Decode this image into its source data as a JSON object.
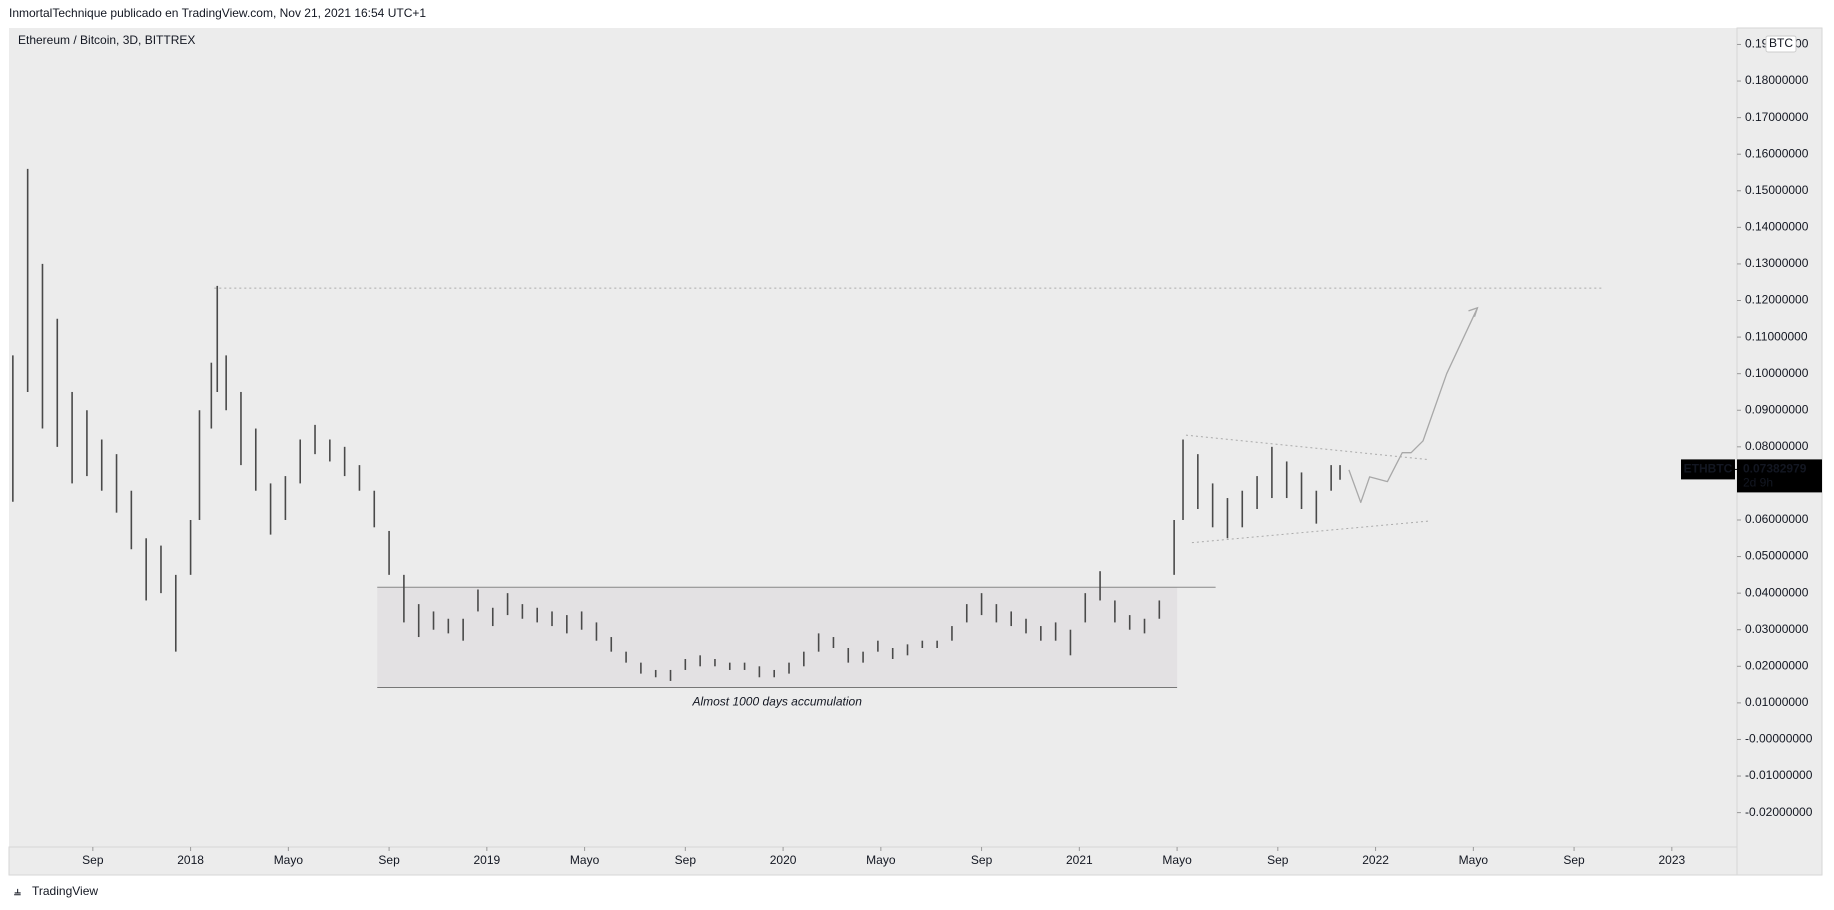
{
  "header": {
    "publisher": "InmortalTechnique publicado en TradingView.com, Nov 21, 2021 16:54 UTC+1"
  },
  "footer": {
    "brand": "TradingView"
  },
  "chart_data": {
    "type": "range-bar",
    "title": "Ethereum / Bitcoin, 3D, BITTREX",
    "symbol": "ETHBTC",
    "currency": "BTC",
    "last_price": {
      "value": 0.07382979,
      "label": "0.07382979"
    },
    "countdown": "2d 9h",
    "color": "#4a4a4a",
    "grid": false,
    "xlim": [
      2017.387,
      2023.22
    ],
    "ylim": [
      -0.0294,
      0.1945
    ],
    "xticks": [
      {
        "value": 2017.67,
        "label": "Sep"
      },
      {
        "value": 2018,
        "label": "2018"
      },
      {
        "value": 2018.33,
        "label": "Mayo"
      },
      {
        "value": 2018.67,
        "label": "Sep"
      },
      {
        "value": 2019,
        "label": "2019"
      },
      {
        "value": 2019.33,
        "label": "Mayo"
      },
      {
        "value": 2019.67,
        "label": "Sep"
      },
      {
        "value": 2020,
        "label": "2020"
      },
      {
        "value": 2020.33,
        "label": "Mayo"
      },
      {
        "value": 2020.67,
        "label": "Sep"
      },
      {
        "value": 2021,
        "label": "2021"
      },
      {
        "value": 2021.33,
        "label": "Mayo"
      },
      {
        "value": 2021.67,
        "label": "Sep"
      },
      {
        "value": 2022,
        "label": "2022"
      },
      {
        "value": 2022.33,
        "label": "Mayo"
      },
      {
        "value": 2022.67,
        "label": "Sep"
      },
      {
        "value": 2023,
        "label": "2023"
      }
    ],
    "yticks": [
      {
        "value": 0.19,
        "label": "0.19000000"
      },
      {
        "value": 0.18,
        "label": "0.18000000"
      },
      {
        "value": 0.17,
        "label": "0.17000000"
      },
      {
        "value": 0.16,
        "label": "0.16000000"
      },
      {
        "value": 0.15,
        "label": "0.15000000"
      },
      {
        "value": 0.14,
        "label": "0.14000000"
      },
      {
        "value": 0.13,
        "label": "0.13000000"
      },
      {
        "value": 0.12,
        "label": "0.12000000"
      },
      {
        "value": 0.11,
        "label": "0.11000000"
      },
      {
        "value": 0.1,
        "label": "0.10000000"
      },
      {
        "value": 0.09,
        "label": "0.09000000"
      },
      {
        "value": 0.08,
        "label": "0.08000000"
      },
      {
        "value": 0.07,
        "label": "0.07000000"
      },
      {
        "value": 0.06,
        "label": "0.06000000"
      },
      {
        "value": 0.05,
        "label": "0.05000000"
      },
      {
        "value": 0.04,
        "label": "0.04000000"
      },
      {
        "value": 0.03,
        "label": "0.03000000"
      },
      {
        "value": 0.02,
        "label": "0.02000000"
      },
      {
        "value": 0.01,
        "label": "0.01000000"
      },
      {
        "value": 0,
        "label": "-0.00000000"
      },
      {
        "value": -0.01,
        "label": "-0.01000000"
      },
      {
        "value": -0.02,
        "label": "-0.02000000"
      }
    ],
    "x": [
      2017.4,
      2017.45,
      2017.5,
      2017.55,
      2017.6,
      2017.65,
      2017.7,
      2017.75,
      2017.8,
      2017.85,
      2017.9,
      2017.95,
      2018.0,
      2018.03,
      2018.07,
      2018.09,
      2018.12,
      2018.17,
      2018.22,
      2018.27,
      2018.32,
      2018.37,
      2018.42,
      2018.47,
      2018.52,
      2018.57,
      2018.62,
      2018.67,
      2018.72,
      2018.77,
      2018.82,
      2018.87,
      2018.92,
      2018.97,
      2019.02,
      2019.07,
      2019.12,
      2019.17,
      2019.22,
      2019.27,
      2019.32,
      2019.37,
      2019.42,
      2019.47,
      2019.52,
      2019.57,
      2019.62,
      2019.67,
      2019.72,
      2019.77,
      2019.82,
      2019.87,
      2019.92,
      2019.97,
      2020.02,
      2020.07,
      2020.12,
      2020.17,
      2020.22,
      2020.27,
      2020.32,
      2020.37,
      2020.42,
      2020.47,
      2020.52,
      2020.57,
      2020.62,
      2020.67,
      2020.72,
      2020.77,
      2020.82,
      2020.87,
      2020.92,
      2020.97,
      2021.02,
      2021.07,
      2021.12,
      2021.17,
      2021.22,
      2021.27,
      2021.32,
      2021.35,
      2021.4,
      2021.45,
      2021.5,
      2021.55,
      2021.6,
      2021.65,
      2021.7,
      2021.75,
      2021.8,
      2021.85,
      2021.88
    ],
    "low": [
      0.065,
      0.095,
      0.085,
      0.08,
      0.07,
      0.072,
      0.068,
      0.062,
      0.052,
      0.038,
      0.04,
      0.024,
      0.045,
      0.06,
      0.085,
      0.095,
      0.09,
      0.075,
      0.068,
      0.056,
      0.06,
      0.07,
      0.078,
      0.076,
      0.072,
      0.068,
      0.058,
      0.045,
      0.032,
      0.028,
      0.03,
      0.029,
      0.027,
      0.035,
      0.031,
      0.034,
      0.033,
      0.032,
      0.031,
      0.029,
      0.03,
      0.027,
      0.024,
      0.021,
      0.018,
      0.017,
      0.016,
      0.019,
      0.02,
      0.02,
      0.019,
      0.019,
      0.017,
      0.017,
      0.018,
      0.02,
      0.024,
      0.025,
      0.021,
      0.021,
      0.024,
      0.022,
      0.023,
      0.025,
      0.025,
      0.027,
      0.032,
      0.034,
      0.032,
      0.031,
      0.029,
      0.027,
      0.027,
      0.023,
      0.032,
      0.038,
      0.032,
      0.03,
      0.029,
      0.033,
      0.045,
      0.06,
      0.063,
      0.058,
      0.055,
      0.058,
      0.063,
      0.066,
      0.066,
      0.063,
      0.059,
      0.068,
      0.071
    ],
    "high": [
      0.105,
      0.156,
      0.13,
      0.115,
      0.095,
      0.09,
      0.082,
      0.078,
      0.068,
      0.055,
      0.053,
      0.045,
      0.06,
      0.09,
      0.103,
      0.124,
      0.105,
      0.095,
      0.085,
      0.07,
      0.072,
      0.082,
      0.086,
      0.082,
      0.08,
      0.075,
      0.068,
      0.057,
      0.045,
      0.037,
      0.035,
      0.033,
      0.033,
      0.041,
      0.036,
      0.04,
      0.037,
      0.036,
      0.035,
      0.034,
      0.035,
      0.032,
      0.028,
      0.024,
      0.021,
      0.019,
      0.019,
      0.022,
      0.023,
      0.022,
      0.021,
      0.021,
      0.02,
      0.019,
      0.021,
      0.024,
      0.029,
      0.028,
      0.025,
      0.024,
      0.027,
      0.025,
      0.026,
      0.027,
      0.027,
      0.031,
      0.037,
      0.04,
      0.037,
      0.035,
      0.033,
      0.031,
      0.032,
      0.03,
      0.04,
      0.046,
      0.038,
      0.034,
      0.033,
      0.038,
      0.06,
      0.082,
      0.078,
      0.07,
      0.066,
      0.068,
      0.072,
      0.08,
      0.076,
      0.073,
      0.068,
      0.075,
      0.075
    ],
    "resistance": {
      "x": [
        2018.08,
        2022.77
      ],
      "y": [
        0.1234,
        0.1234
      ]
    },
    "accumulation": {
      "x": [
        2018.63,
        2021.33
      ],
      "y": [
        0.0142,
        0.0416
      ],
      "support_end": 2021.46,
      "label": "Almost 1000 days accumulation"
    },
    "triangle_upper": {
      "x": [
        2021.36,
        2022.18
      ],
      "y": [
        0.0832,
        0.0765
      ]
    },
    "triangle_lower": {
      "x": [
        2021.38,
        2022.18
      ],
      "y": [
        0.0538,
        0.0597
      ]
    },
    "projection": {
      "x": [
        2021.91,
        2021.95,
        2021.98,
        2022.04,
        2022.09,
        2022.12,
        2022.16,
        2022.24,
        2022.344
      ],
      "y": [
        0.0737,
        0.0648,
        0.0718,
        0.0705,
        0.0784,
        0.0784,
        0.0816,
        0.1,
        0.118
      ]
    }
  }
}
